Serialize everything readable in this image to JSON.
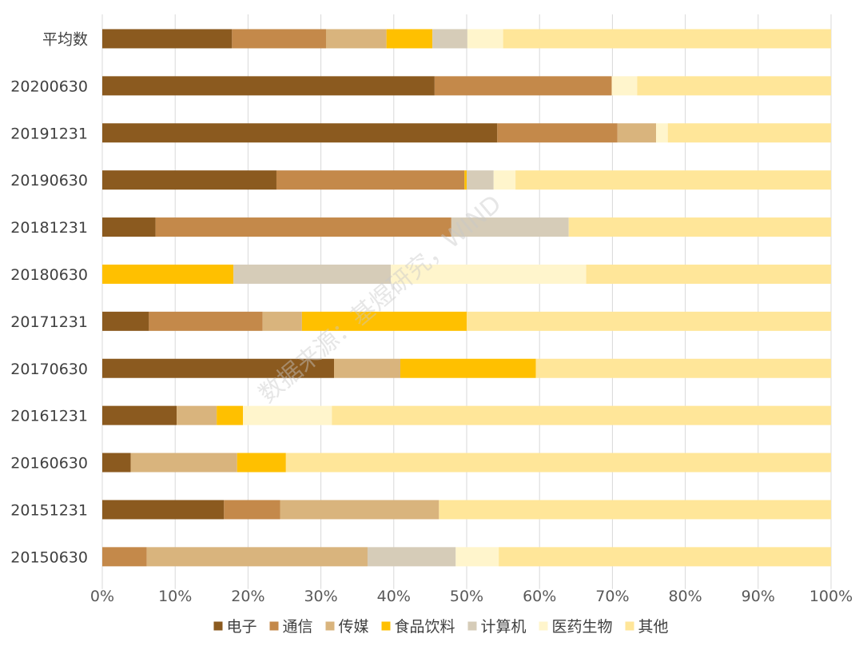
{
  "chart_data": {
    "type": "bar",
    "orientation": "horizontal",
    "stacked": "percent",
    "categories": [
      "平均数",
      "20200630",
      "20191231",
      "20190630",
      "20181231",
      "20180630",
      "20171231",
      "20170630",
      "20161231",
      "20160630",
      "20151231",
      "20150630"
    ],
    "series": [
      {
        "name": "电子",
        "color": "#8b5a1f",
        "values": [
          17.8,
          45.6,
          54.2,
          23.9,
          7.3,
          0,
          6.4,
          31.8,
          10.2,
          3.9,
          16.7,
          0
        ]
      },
      {
        "name": "通信",
        "color": "#c4894a",
        "values": [
          12.9,
          24.3,
          16.5,
          25.8,
          40.6,
          0,
          15.6,
          0,
          0,
          0,
          7.7,
          6.1
        ]
      },
      {
        "name": "传媒",
        "color": "#d9b47d",
        "values": [
          8.3,
          0,
          5.3,
          0,
          0,
          0,
          5.4,
          9.1,
          5.5,
          14.6,
          21.8,
          30.3
        ]
      },
      {
        "name": "食品饮料",
        "color": "#ffc000",
        "values": [
          6.3,
          0,
          0,
          0.3,
          0,
          18.0,
          22.6,
          18.6,
          3.6,
          6.7,
          0,
          0
        ]
      },
      {
        "name": "计算机",
        "color": "#d6ccb8",
        "values": [
          4.8,
          0,
          0,
          3.7,
          16.1,
          21.6,
          0,
          0,
          0,
          0,
          0,
          12.1
        ]
      },
      {
        "name": "医药生物",
        "color": "#fff5cc",
        "values": [
          4.9,
          3.5,
          1.6,
          3.0,
          0,
          26.8,
          0,
          0,
          12.2,
          0,
          0,
          5.9
        ]
      },
      {
        "name": "其他",
        "color": "#ffe699",
        "values": [
          45.0,
          26.6,
          22.4,
          43.3,
          36.0,
          33.6,
          50.0,
          40.5,
          68.5,
          74.8,
          53.8,
          45.6
        ]
      }
    ],
    "x_ticks": [
      "0%",
      "10%",
      "20%",
      "30%",
      "40%",
      "50%",
      "60%",
      "70%",
      "80%",
      "90%",
      "100%"
    ],
    "xlim": [
      0,
      100
    ],
    "grid": true,
    "legend_position": "bottom",
    "watermark": "数据来源：基煜研究，WIND"
  }
}
